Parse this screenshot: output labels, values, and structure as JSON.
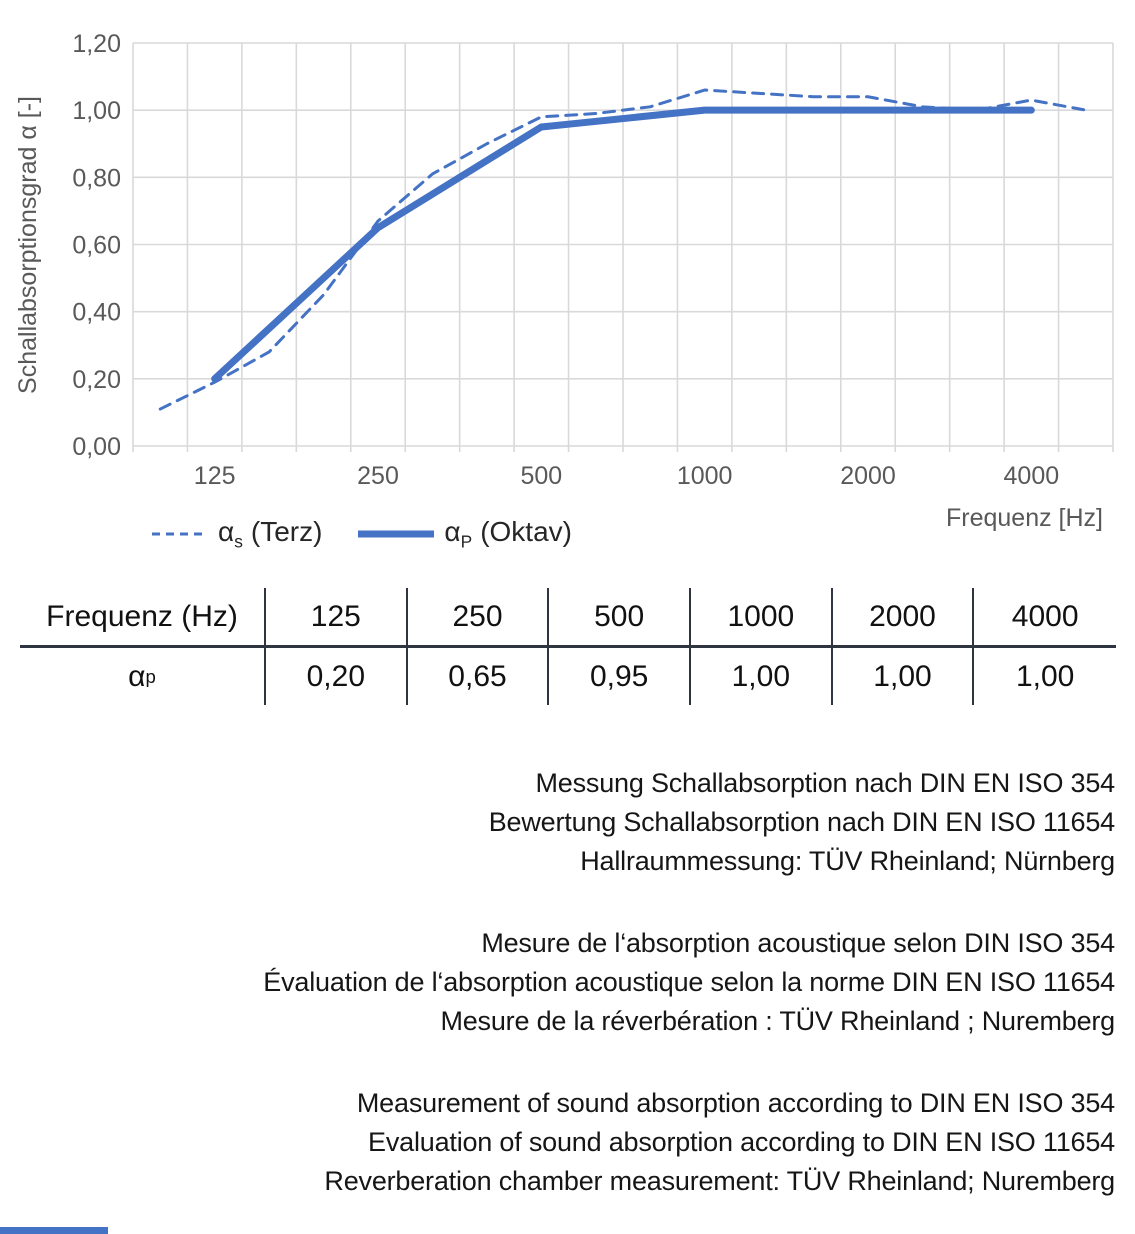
{
  "chart_data": {
    "type": "line",
    "title": "",
    "xlabel": "Frequenz [Hz]",
    "ylabel": "Schallabsorptionsgrad α [-]",
    "grid": true,
    "legend_position": "bottom-left",
    "ylim": [
      0,
      1.2
    ],
    "y_tick_step": 0.2,
    "y_tick_labels": [
      "0,00",
      "0,20",
      "0,40",
      "0,60",
      "0,80",
      "1,00",
      "1,20"
    ],
    "categories": [
      100,
      125,
      160,
      200,
      250,
      315,
      400,
      500,
      630,
      800,
      1000,
      1250,
      1600,
      2000,
      2500,
      3150,
      4000,
      5000
    ],
    "x_labeled_categories": [
      125,
      250,
      500,
      1000,
      2000,
      4000
    ],
    "x_tick_labels": [
      "125",
      "250",
      "500",
      "1000",
      "2000",
      "4000"
    ],
    "series": [
      {
        "name": "αs (Terz)",
        "style": "dashed",
        "x": [
          100,
          125,
          160,
          200,
          250,
          315,
          400,
          500,
          630,
          800,
          1000,
          1250,
          1600,
          2000,
          2500,
          3150,
          4000,
          5000
        ],
        "values": [
          0.11,
          0.19,
          0.28,
          0.45,
          0.67,
          0.81,
          0.9,
          0.98,
          0.99,
          1.01,
          1.06,
          1.05,
          1.04,
          1.04,
          1.01,
          1.0,
          1.03,
          1.0
        ]
      },
      {
        "name": "αP (Oktav)",
        "style": "solid",
        "x": [
          125,
          250,
          500,
          1000,
          2000,
          4000
        ],
        "values": [
          0.2,
          0.65,
          0.95,
          1.0,
          1.0,
          1.0
        ]
      }
    ]
  },
  "legend": {
    "terz": {
      "sym": "α",
      "sub": "s",
      "rest": "(Terz)"
    },
    "oktav": {
      "sym": "α",
      "sub": "P",
      "rest": "(Oktav)"
    }
  },
  "table": {
    "header": [
      "Frequenz (Hz)",
      "125",
      "250",
      "500",
      "1000",
      "2000",
      "4000"
    ],
    "row_label": {
      "sym": "α",
      "sub": "p"
    },
    "values": [
      "0,20",
      "0,65",
      "0,95",
      "1,00",
      "1,00",
      "1,00"
    ]
  },
  "notes": {
    "de": [
      "Messung Schallabsorption nach DIN EN ISO 354",
      "Bewertung Schallabsorption nach DIN EN ISO 11654",
      "Hallraummessung: TÜV Rheinland; Nürnberg"
    ],
    "fr": [
      "Mesure de l‘absorption acoustique selon DIN ISO 354",
      "Évaluation de l‘absorption acoustique selon la norme DIN EN ISO 11654",
      "Mesure de la réverbération : TÜV Rheinland ; Nuremberg"
    ],
    "en": [
      "Measurement of sound absorption according to DIN EN ISO 354",
      "Evaluation of sound absorption according to DIN EN ISO 11654",
      "Reverberation chamber measurement: TÜV Rheinland; Nuremberg"
    ]
  },
  "colors": {
    "line_blue": "#4472C4",
    "grid_gray": "#D9D9D9",
    "axis_text": "#595959",
    "table_line": "#2e3440",
    "accent_blue": "#4472C4"
  }
}
